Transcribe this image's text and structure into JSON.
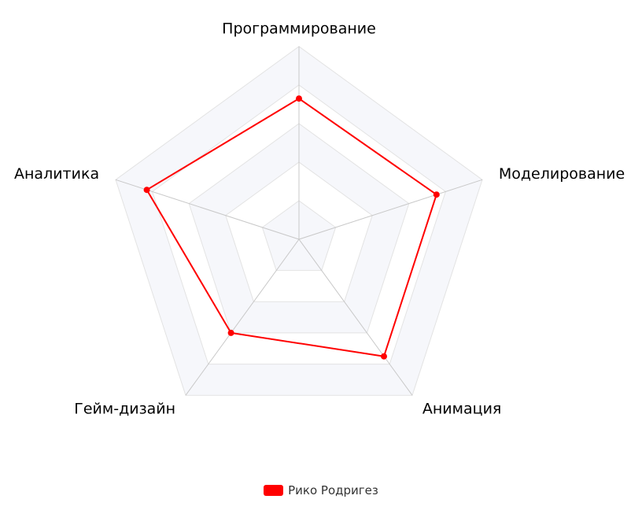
{
  "chart_data": {
    "type": "radar",
    "indicators": [
      "Программирование",
      "Моделирование",
      "Анимация",
      "Гейм-дизайн",
      "Аналитика"
    ],
    "max": 100,
    "split_number": 5,
    "series": [
      {
        "name": "Рико Родригез",
        "values": [
          73,
          75,
          75,
          60,
          83
        ],
        "color": "#ff0000"
      }
    ],
    "legend_position": "bottom-center",
    "split_area_colors": [
      "#f6f7fb",
      "#ffffff"
    ],
    "grid_line_color": "#e3e3e3",
    "axis_line_color": "#c8c8c8"
  }
}
